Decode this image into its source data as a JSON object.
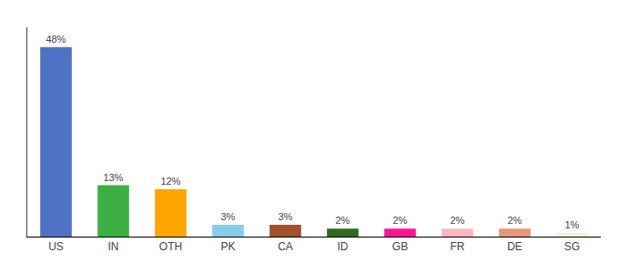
{
  "chart_data": {
    "type": "bar",
    "categories": [
      "US",
      "IN",
      "OTH",
      "PK",
      "CA",
      "ID",
      "GB",
      "FR",
      "DE",
      "SG"
    ],
    "values": [
      48,
      13,
      12,
      3,
      3,
      2,
      2,
      2,
      2,
      1
    ],
    "value_labels": [
      "48%",
      "13%",
      "12%",
      "3%",
      "3%",
      "2%",
      "2%",
      "2%",
      "2%",
      "1%"
    ],
    "colors": [
      "#4F72C4",
      "#3CB043",
      "#FFA500",
      "#87CEEB",
      "#A0522D",
      "#2E6B1E",
      "#FF1493",
      "#FFB6C1",
      "#E8967A",
      "#F5F0DC"
    ],
    "ylim": [
      0,
      53
    ],
    "grid": false,
    "data_labels": true,
    "tick_labels": "x"
  }
}
